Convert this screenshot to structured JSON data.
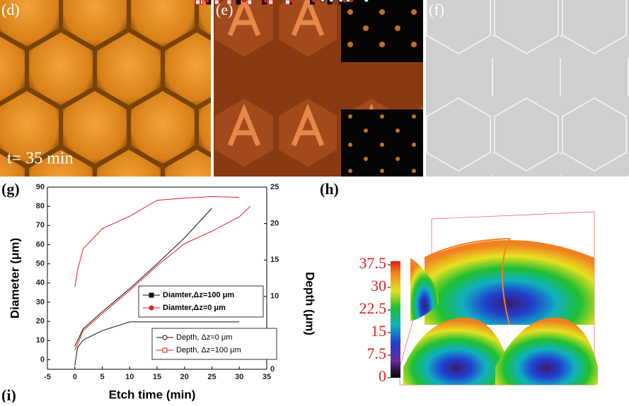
{
  "panels": {
    "d": "(d)",
    "e": "(e)",
    "f": "(f)",
    "g": "(g)",
    "h": "(h)",
    "i": "(i)",
    "d_annotation": "t= 35 min"
  },
  "colorbar": {
    "ticks": [
      37.5,
      30,
      22.5,
      15,
      7.5,
      0
    ]
  },
  "chart_data": {
    "type": "line",
    "xlabel": "Etch time (min)",
    "ylabel": "Diameter (μm)",
    "y2label": "Depth (μm)",
    "xlim": [
      -5,
      35
    ],
    "xticks": [
      -5,
      0,
      5,
      10,
      15,
      20,
      25,
      30,
      35
    ],
    "ylim": [
      -5,
      90
    ],
    "yticks": [
      0,
      10,
      20,
      30,
      40,
      50,
      60,
      70,
      80,
      90
    ],
    "y2lim": [
      0,
      25
    ],
    "y2ticks": [
      0,
      5,
      10,
      15,
      20,
      25
    ],
    "series": [
      {
        "name": "Diamter,Δz=100 μm",
        "color": "#111111",
        "marker": "square",
        "filled": true,
        "x": [
          0,
          0.5,
          1.5,
          5,
          10,
          15,
          20,
          25
        ],
        "values": [
          7,
          10,
          16,
          25,
          37,
          50,
          63.5,
          79
        ]
      },
      {
        "name": "Diamter,Δz=0 μm",
        "color": "#e0201e",
        "marker": "circle",
        "filled": true,
        "x": [
          0,
          0.5,
          1.5,
          5,
          10,
          15,
          20,
          25,
          30,
          32
        ],
        "values": [
          5,
          8,
          15,
          24,
          36,
          49,
          60.5,
          67,
          74.5,
          80
        ]
      },
      {
        "name": "Depth, Δz=0 μm",
        "color": "#111111",
        "marker": "circle",
        "filled": false,
        "axis": "y2",
        "x": [
          0,
          0.5,
          1.5,
          5,
          10,
          15,
          20,
          25,
          30
        ],
        "values": [
          0.5,
          3,
          4,
          5.3,
          6.5,
          6.5,
          6.5,
          6.5,
          6.5
        ]
      },
      {
        "name": "Depth, Δz=100 μm",
        "color": "#e0201e",
        "marker": "square",
        "filled": false,
        "axis": "y2",
        "x": [
          0,
          0.5,
          1.5,
          5,
          10,
          15,
          20,
          25,
          30
        ],
        "values": [
          11.3,
          13.6,
          16.5,
          19.3,
          21,
          23.2,
          23.5,
          23.7,
          23.6
        ]
      }
    ]
  }
}
